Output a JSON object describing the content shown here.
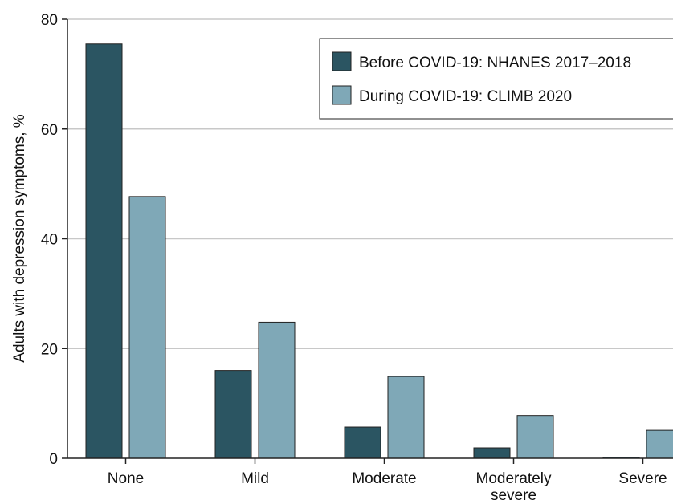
{
  "chart_data": {
    "type": "bar",
    "title": "",
    "xlabel": "",
    "ylabel": "Adults with depression symptoms, %",
    "ylim": [
      0,
      80
    ],
    "yticks": [
      0,
      20,
      40,
      60,
      80
    ],
    "grid": true,
    "legend_position": "top-right",
    "categories": [
      [
        "None"
      ],
      [
        "Mild"
      ],
      [
        "Moderate"
      ],
      [
        "Moderately",
        "severe"
      ],
      [
        "Severe"
      ]
    ],
    "series": [
      {
        "name": "Before COVID-19: NHANES 2017–2018",
        "color": "#2b5562",
        "values": [
          75.5,
          16.0,
          5.7,
          1.9,
          0.2
        ]
      },
      {
        "name": "During COVID-19: CLIMB 2020",
        "color": "#7fa8b7",
        "values": [
          47.7,
          24.8,
          14.9,
          7.8,
          5.1
        ]
      }
    ]
  }
}
